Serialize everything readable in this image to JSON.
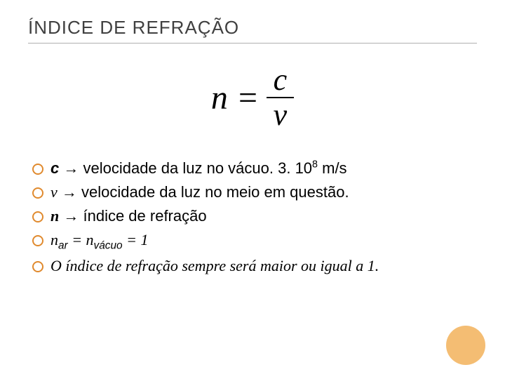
{
  "title": "ÍNDICE DE REFRAÇÃO",
  "formula": {
    "lhs": "n =",
    "numerator": "c",
    "denominator": "v"
  },
  "bullets": {
    "b1_pre": "c",
    "b1_rest": " → velocidade da luz no vácuo. 3. 10",
    "b1_exp": "8",
    "b1_unit": " m/s",
    "b2_pre": "v",
    "b2_rest": " → velocidade da luz no meio em questão.",
    "b3_pre": "n",
    "b3_arrow": " → ",
    "b3_rest": "índice de refração",
    "b4_n1": "n",
    "b4_sub1": "ar",
    "b4_eq1": " = ",
    "b4_n2": "n",
    "b4_sub2": "vácuo",
    "b4_eq2": " = 1",
    "b5": "O índice de refração sempre será maior ou igual a 1."
  },
  "colors": {
    "accent_bullet": "#e08a2e",
    "corner_fill": "#f2b15a",
    "title_color": "#404040",
    "rule_color": "#b0b0b0"
  }
}
